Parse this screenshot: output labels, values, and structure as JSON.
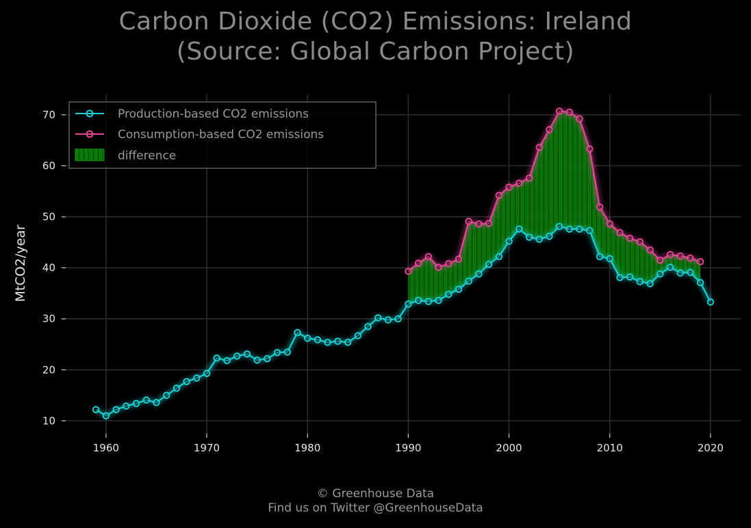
{
  "chart_data": {
    "type": "line",
    "title_lines": [
      "Carbon Dioxide (CO2) Emissions: Ireland",
      "(Source: Global Carbon Project)"
    ],
    "ylabel": "MtCO2/year",
    "xlabel": "",
    "xlim": [
      1956,
      2023
    ],
    "ylim": [
      7.5,
      74
    ],
    "xticks": [
      1960,
      1970,
      1980,
      1990,
      2000,
      2010,
      2020
    ],
    "yticks": [
      10,
      20,
      30,
      40,
      50,
      60,
      70
    ],
    "grid": true,
    "legend_position": "top-left",
    "background": "#000000",
    "series": [
      {
        "name": "Production-based CO2 emissions",
        "color": "#1fd1d6",
        "x": [
          1959,
          1960,
          1961,
          1962,
          1963,
          1964,
          1965,
          1966,
          1967,
          1968,
          1969,
          1970,
          1971,
          1972,
          1973,
          1974,
          1975,
          1976,
          1977,
          1978,
          1979,
          1980,
          1981,
          1982,
          1983,
          1984,
          1985,
          1986,
          1987,
          1988,
          1989,
          1990,
          1991,
          1992,
          1993,
          1994,
          1995,
          1996,
          1997,
          1998,
          1999,
          2000,
          2001,
          2002,
          2003,
          2004,
          2005,
          2006,
          2007,
          2008,
          2009,
          2010,
          2011,
          2012,
          2013,
          2014,
          2015,
          2016,
          2017,
          2018,
          2019,
          2020
        ],
        "values": [
          12.2,
          11.0,
          12.2,
          12.9,
          13.4,
          14.1,
          13.6,
          15.0,
          16.4,
          17.7,
          18.4,
          19.3,
          22.3,
          21.8,
          22.7,
          23.1,
          21.9,
          22.2,
          23.4,
          23.5,
          27.3,
          26.2,
          25.9,
          25.4,
          25.6,
          25.4,
          26.7,
          28.5,
          30.2,
          29.8,
          30.0,
          32.9,
          33.6,
          33.4,
          33.6,
          34.8,
          35.8,
          37.4,
          38.8,
          40.7,
          42.2,
          45.2,
          47.6,
          46.0,
          45.6,
          46.2,
          48.1,
          47.6,
          47.6,
          47.3,
          42.2,
          41.8,
          38.1,
          38.2,
          37.3,
          36.9,
          38.8,
          40.1,
          39.0,
          39.1,
          37.1,
          33.3
        ]
      },
      {
        "name": "Consumption-based CO2 emissions",
        "color": "#e8489a",
        "x": [
          1990,
          1991,
          1992,
          1993,
          1994,
          1995,
          1996,
          1997,
          1998,
          1999,
          2000,
          2001,
          2002,
          2003,
          2004,
          2005,
          2006,
          2007,
          2008,
          2009,
          2010,
          2011,
          2012,
          2013,
          2014,
          2015,
          2016,
          2017,
          2018,
          2019
        ],
        "values": [
          39.3,
          40.9,
          42.2,
          40.1,
          40.8,
          41.7,
          49.1,
          48.6,
          48.7,
          54.2,
          55.8,
          56.6,
          57.6,
          63.6,
          67.1,
          70.7,
          70.5,
          69.2,
          63.3,
          51.9,
          48.6,
          46.9,
          45.8,
          45.1,
          43.5,
          41.5,
          42.6,
          42.3,
          41.9,
          41.2
        ]
      }
    ],
    "fill_between": {
      "name": "difference",
      "color": "#0a7a0a",
      "between": [
        "Production-based CO2 emissions",
        "Consumption-based CO2 emissions"
      ]
    }
  },
  "footer": {
    "line1": "© Greenhouse Data",
    "line2": "Find us on Twitter @GreenhouseData"
  }
}
